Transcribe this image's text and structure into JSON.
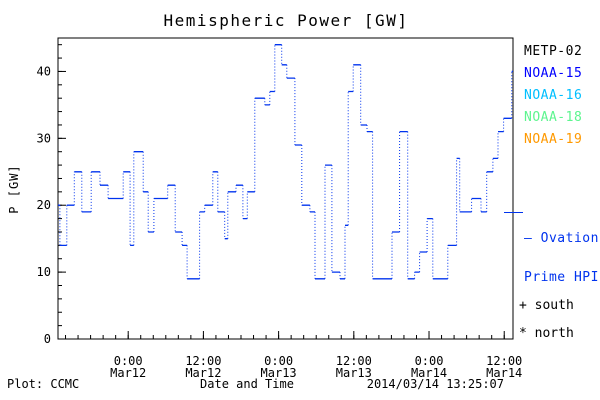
{
  "footer": {
    "left": "Plot: CCMC",
    "timestamp": "2014/03/14 13:25:07"
  },
  "legend": {
    "satellites": [
      {
        "label": "METP-02",
        "color": "#000000"
      },
      {
        "label": "NOAA-15",
        "color": "#0000ff"
      },
      {
        "label": "NOAA-16",
        "color": "#00bfff"
      },
      {
        "label": "NOAA-18",
        "color": "#5df58f"
      },
      {
        "label": "NOAA-19",
        "color": "#ff9900"
      }
    ],
    "ovation_line1": "– Ovation",
    "ovation_line2": "Prime HPI",
    "ovation_color": "#0033ee",
    "south_key": "+ south",
    "north_key": "* north"
  },
  "chart_data": {
    "type": "line",
    "subtype": "step-with-dotted-risers",
    "title": "Hemispheric Power [GW]",
    "xlabel": "Date and Time",
    "ylabel": "P [GW]",
    "ylim": [
      0,
      45
    ],
    "xlim_hours": [
      0,
      72.6
    ],
    "grid": false,
    "legend_position": "right-outside",
    "line_color": "#0033ee",
    "axis_color": "#000000",
    "y_ticks": [
      0,
      10,
      20,
      30,
      40
    ],
    "y_minor_step": 2,
    "x_minor_step_hours": 2,
    "x_minor_start_hour": 1.2,
    "x_ticks": [
      {
        "hour": 11.2,
        "time": "0:00",
        "date": "Mar12"
      },
      {
        "hour": 23.2,
        "time": "12:00",
        "date": "Mar12"
      },
      {
        "hour": 35.2,
        "time": "0:00",
        "date": "Mar13"
      },
      {
        "hour": 47.2,
        "time": "12:00",
        "date": "Mar13"
      },
      {
        "hour": 59.2,
        "time": "0:00",
        "date": "Mar14"
      },
      {
        "hour": 71.2,
        "time": "12:00",
        "date": "Mar14"
      }
    ],
    "series": [
      {
        "name": "Ovation Prime HPI",
        "units": "GW",
        "points_hour_value": [
          [
            0,
            20
          ],
          [
            0.3,
            14
          ],
          [
            1.4,
            20
          ],
          [
            2.6,
            25
          ],
          [
            3.8,
            19
          ],
          [
            5.3,
            25
          ],
          [
            6.7,
            23
          ],
          [
            8.0,
            21
          ],
          [
            10.4,
            25
          ],
          [
            11.5,
            14
          ],
          [
            12.1,
            28
          ],
          [
            13.6,
            22
          ],
          [
            14.4,
            16
          ],
          [
            15.3,
            21
          ],
          [
            17.5,
            23
          ],
          [
            18.7,
            16
          ],
          [
            19.8,
            14
          ],
          [
            20.6,
            9
          ],
          [
            22.6,
            19
          ],
          [
            23.4,
            20
          ],
          [
            24.7,
            25
          ],
          [
            25.5,
            19
          ],
          [
            26.6,
            15
          ],
          [
            27.1,
            22
          ],
          [
            28.4,
            23
          ],
          [
            29.5,
            18
          ],
          [
            30.2,
            22
          ],
          [
            31.4,
            36
          ],
          [
            33.0,
            35
          ],
          [
            33.8,
            37
          ],
          [
            34.6,
            44
          ],
          [
            35.7,
            41
          ],
          [
            36.5,
            39
          ],
          [
            37.8,
            29
          ],
          [
            38.9,
            20
          ],
          [
            40.2,
            19
          ],
          [
            41.0,
            9
          ],
          [
            42.6,
            26
          ],
          [
            43.7,
            10
          ],
          [
            45.0,
            9
          ],
          [
            45.8,
            17
          ],
          [
            46.3,
            37
          ],
          [
            47.1,
            41
          ],
          [
            48.3,
            32
          ],
          [
            49.3,
            31
          ],
          [
            50.2,
            9
          ],
          [
            53.3,
            16
          ],
          [
            54.5,
            31
          ],
          [
            55.8,
            9
          ],
          [
            56.9,
            10
          ],
          [
            57.7,
            13
          ],
          [
            58.9,
            18
          ],
          [
            59.8,
            9
          ],
          [
            62.2,
            14
          ],
          [
            63.6,
            27
          ],
          [
            64.1,
            19
          ],
          [
            66.0,
            21
          ],
          [
            67.5,
            19
          ],
          [
            68.4,
            25
          ],
          [
            69.4,
            27
          ],
          [
            70.2,
            31
          ],
          [
            71.1,
            33
          ],
          [
            72.4,
            40
          ]
        ]
      }
    ]
  }
}
